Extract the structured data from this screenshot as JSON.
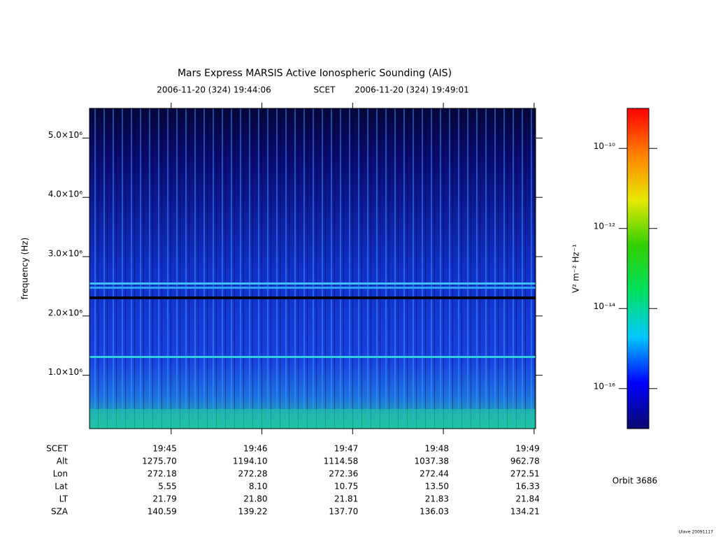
{
  "chart_data": {
    "type": "spectrogram",
    "title": "Mars Express MARSIS Active Ionospheric Sounding (AIS)",
    "start_time": "2006-11-20 (324) 19:44:06",
    "time_system": "SCET",
    "end_time": "2006-11-20 (324) 19:49:01",
    "ylabel": "frequency (Hz)",
    "ylim": [
      100000,
      5500000
    ],
    "yticks": [
      {
        "value": 1000000,
        "label": "1.0×10⁶"
      },
      {
        "value": 2000000,
        "label": "2.0×10⁶"
      },
      {
        "value": 3000000,
        "label": "3.0×10⁶"
      },
      {
        "value": 4000000,
        "label": "4.0×10⁶"
      },
      {
        "value": 5000000,
        "label": "5.0×10⁶"
      }
    ],
    "xlim": [
      "19:44:06",
      "19:49:01"
    ],
    "xlabel": "SCET",
    "xticks": [
      "19:45",
      "19:46",
      "19:47",
      "19:48",
      "19:49"
    ],
    "ephemeris": [
      {
        "name": "Alt",
        "values": [
          "1275.70",
          "1194.10",
          "1114.58",
          "1037.38",
          "962.78"
        ]
      },
      {
        "name": "Lon",
        "values": [
          "272.18",
          "272.28",
          "272.36",
          "272.44",
          "272.51"
        ]
      },
      {
        "name": "Lat",
        "values": [
          "5.55",
          "8.10",
          "10.75",
          "13.50",
          "16.33"
        ]
      },
      {
        "name": "LT",
        "values": [
          "21.79",
          "21.80",
          "21.81",
          "21.83",
          "21.84"
        ]
      },
      {
        "name": "SZA",
        "values": [
          "140.59",
          "139.22",
          "137.70",
          "136.03",
          "134.21"
        ]
      }
    ],
    "colorbar": {
      "label": "V² m⁻² Hz⁻¹",
      "log_scale": true,
      "clim": [
        1e-17,
        1e-09
      ],
      "ticks": [
        {
          "value": 1e-10,
          "label": "10⁻¹⁰"
        },
        {
          "value": 1e-12,
          "label": "10⁻¹²"
        },
        {
          "value": 1e-14,
          "label": "10⁻¹⁴"
        },
        {
          "value": 1e-16,
          "label": "10⁻¹⁶"
        }
      ],
      "colormap": [
        "#0a0a6e",
        "#0000ff",
        "#00c8ff",
        "#00e060",
        "#30d000",
        "#e8e800",
        "#ff8000",
        "#ff0000"
      ]
    },
    "orbit": "Orbit 3686",
    "footer": "Ulave 20091117"
  }
}
